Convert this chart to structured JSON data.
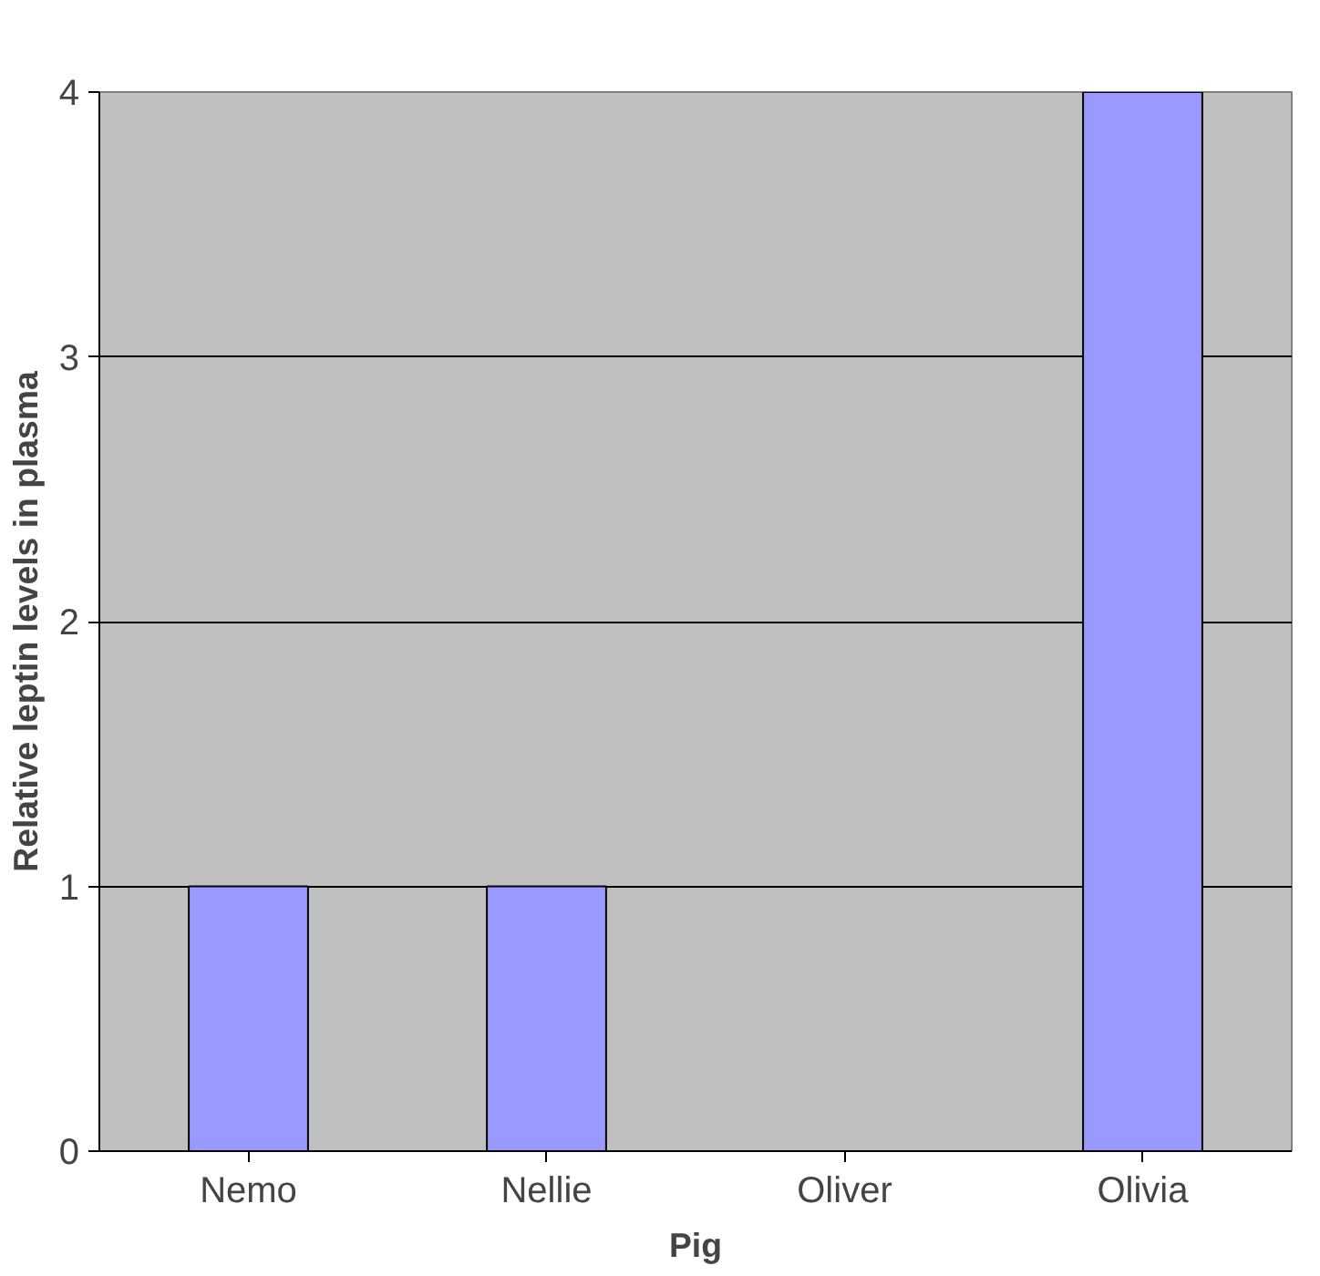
{
  "chart_data": {
    "type": "bar",
    "xlabel": "Pig",
    "ylabel": "Relative leptin levels in plasma",
    "categories": [
      "Nemo",
      "Nellie",
      "Oliver",
      "Olivia"
    ],
    "values": [
      1,
      1,
      null,
      4
    ],
    "color": "#9999ff",
    "ylim": [
      0,
      4
    ],
    "yticks": [
      0,
      1,
      2,
      3,
      4
    ],
    "grid": "y"
  }
}
